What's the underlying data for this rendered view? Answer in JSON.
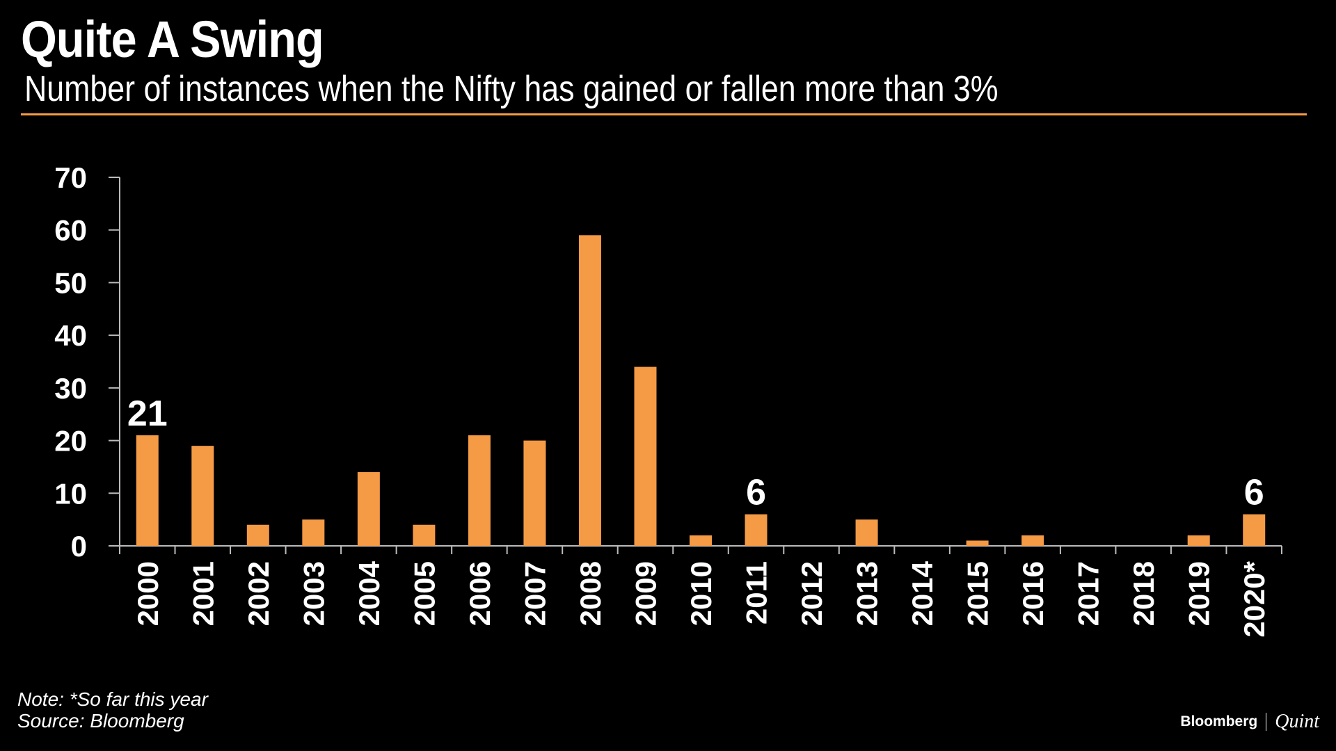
{
  "header": {
    "title": "Quite A Swing",
    "subtitle": "Number of instances when the Nifty has gained or fallen more than 3%"
  },
  "footer": {
    "note": "Note: *So far this year",
    "source": "Source: Bloomberg",
    "brand_primary": "Bloomberg",
    "brand_secondary": "Quint"
  },
  "colors": {
    "background": "#000000",
    "bar": "#f59a45",
    "text": "#ffffff",
    "axis": "#bbbbbb"
  },
  "chart_data": {
    "type": "bar",
    "title": "Quite A Swing",
    "subtitle": "Number of instances when the Nifty has gained or fallen more than 3%",
    "xlabel": "",
    "ylabel": "",
    "categories": [
      "2000",
      "2001",
      "2002",
      "2003",
      "2004",
      "2005",
      "2006",
      "2007",
      "2008",
      "2009",
      "2010",
      "2011",
      "2012",
      "2013",
      "2014",
      "2015",
      "2016",
      "2017",
      "2018",
      "2019",
      "2020*"
    ],
    "values": [
      21,
      19,
      4,
      5,
      14,
      4,
      21,
      20,
      59,
      34,
      2,
      6,
      0,
      5,
      0,
      1,
      2,
      0,
      0,
      2,
      6
    ],
    "ylim": [
      0,
      70
    ],
    "yticks": [
      0,
      10,
      20,
      30,
      40,
      50,
      60,
      70
    ],
    "grid": false,
    "annotations": [
      {
        "category": "2000",
        "label": "21"
      },
      {
        "category": "2011",
        "label": "6"
      },
      {
        "category": "2020*",
        "label": "6"
      }
    ]
  }
}
